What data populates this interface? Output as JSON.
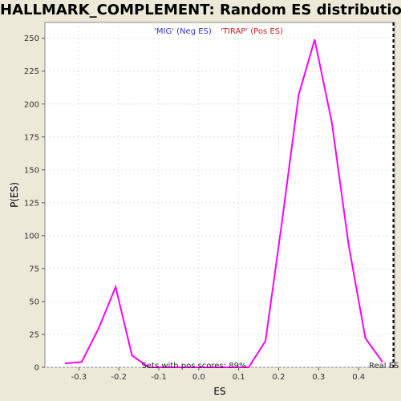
{
  "chart_data": {
    "type": "line",
    "title": "HALLMARK_COMPLEMENT: Random ES distribution",
    "xlabel": "ES",
    "ylabel": "P(ES)",
    "xlim": [
      -0.385,
      0.49
    ],
    "ylim": [
      0,
      262
    ],
    "x_ticks": [
      -0.3,
      -0.2,
      -0.1,
      0.0,
      0.1,
      0.2,
      0.3,
      0.4
    ],
    "x_tick_labels": [
      "-0.3",
      "-0.2",
      "-0.1",
      "0.0",
      "0.1",
      "0.2",
      "0.3",
      "0.4"
    ],
    "y_ticks": [
      0,
      25,
      50,
      75,
      100,
      125,
      150,
      175,
      200,
      225,
      250
    ],
    "y_tick_labels": [
      "0",
      "25",
      "50",
      "75",
      "100",
      "125",
      "150",
      "175",
      "200",
      "225",
      "250"
    ],
    "grid": true,
    "series": [
      {
        "color": "#ff00ff",
        "x": [
          -0.335,
          -0.293,
          -0.25,
          -0.208,
          -0.167,
          -0.125,
          -0.083,
          -0.04,
          0.0,
          0.04,
          0.083,
          0.125,
          0.167,
          0.208,
          0.25,
          0.29,
          0.333,
          0.375,
          0.417,
          0.46
        ],
        "y": [
          3,
          4,
          30,
          61,
          9,
          0,
          0,
          0,
          0,
          0,
          0,
          0,
          20,
          110,
          207,
          249,
          186,
          93,
          22,
          4
        ]
      }
    ],
    "annotations": {
      "neg_label": "'MIG' (Neg ES)",
      "pos_label": "'TIRAP' (Pos ES)",
      "pos_scores_note": "Sets with pos scores: 89%",
      "real_es_label": "Real ES",
      "real_es_value": 0.487
    },
    "colors": {
      "neg": "#3333cc",
      "pos": "#cc2222",
      "line": "#ff00ff",
      "real_es": "#000000"
    }
  }
}
